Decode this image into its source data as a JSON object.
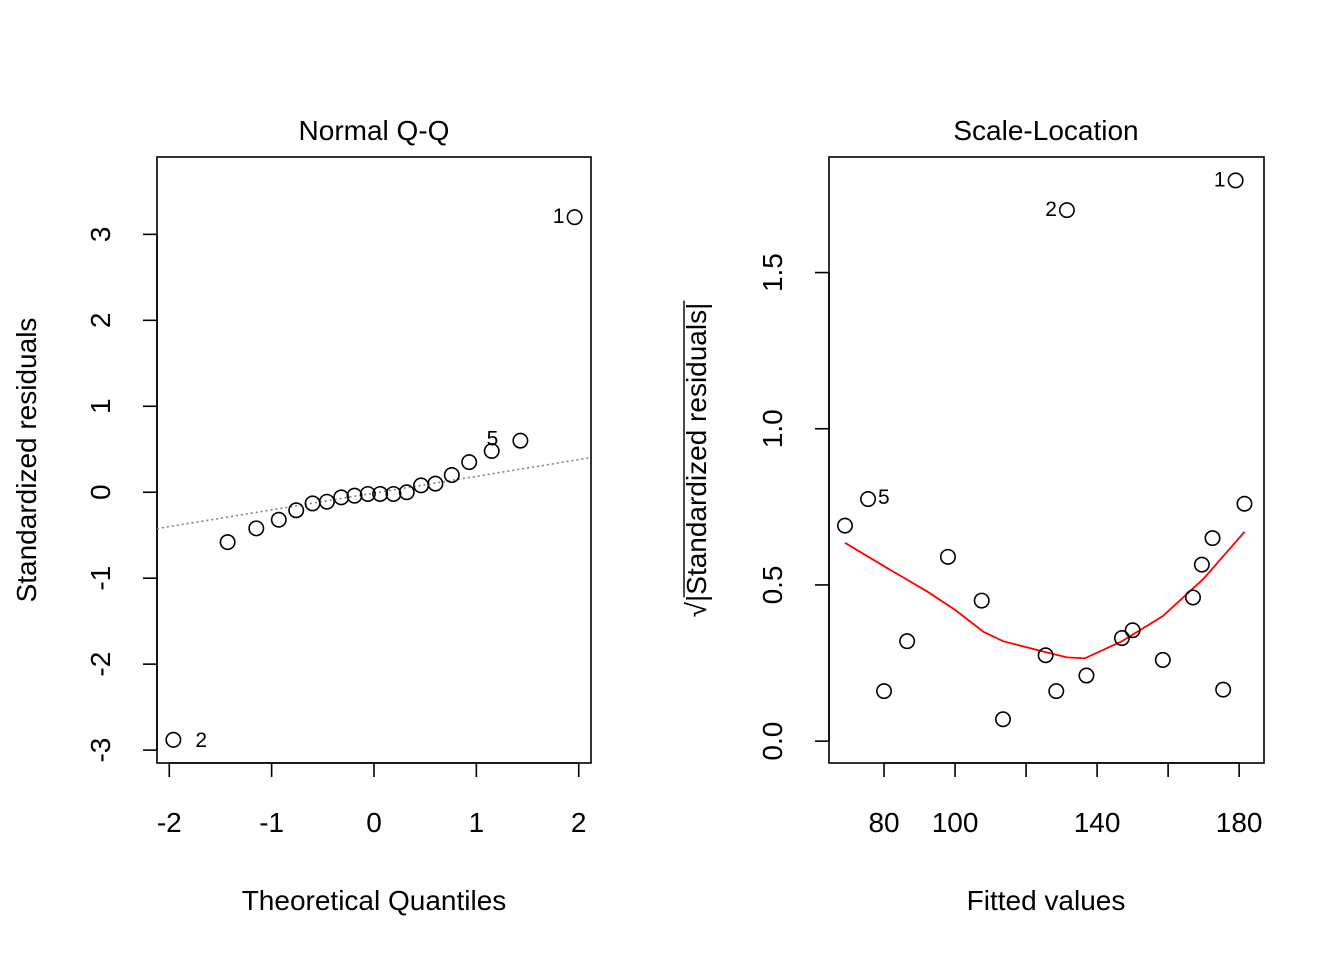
{
  "chart_data": [
    {
      "type": "scatter",
      "title": "Normal Q-Q",
      "xlabel": "Theoretical Quantiles",
      "ylabel": "Standardized residuals",
      "xlim": [
        -2.12,
        2.12
      ],
      "ylim": [
        -3.15,
        3.9
      ],
      "xticks": [
        -2,
        -1,
        0,
        1,
        2
      ],
      "xtick_labels": [
        "-2",
        "-1",
        "0",
        "1",
        "2"
      ],
      "yticks": [
        -3,
        -2,
        -1,
        0,
        1,
        2,
        3
      ],
      "ytick_labels": [
        "-3",
        "-2",
        "-1",
        "0",
        "1",
        "2",
        "3"
      ],
      "grid": false,
      "points": [
        {
          "x": -1.96,
          "y": -2.88,
          "label": "2"
        },
        {
          "x": -1.43,
          "y": -0.58,
          "label": ""
        },
        {
          "x": -1.15,
          "y": -0.42,
          "label": ""
        },
        {
          "x": -0.93,
          "y": -0.32,
          "label": ""
        },
        {
          "x": -0.76,
          "y": -0.21,
          "label": ""
        },
        {
          "x": -0.6,
          "y": -0.13,
          "label": ""
        },
        {
          "x": -0.46,
          "y": -0.11,
          "label": ""
        },
        {
          "x": -0.32,
          "y": -0.06,
          "label": ""
        },
        {
          "x": -0.19,
          "y": -0.04,
          "label": ""
        },
        {
          "x": -0.06,
          "y": -0.02,
          "label": ""
        },
        {
          "x": 0.06,
          "y": -0.02,
          "label": ""
        },
        {
          "x": 0.19,
          "y": -0.02,
          "label": ""
        },
        {
          "x": 0.32,
          "y": 0.0,
          "label": ""
        },
        {
          "x": 0.46,
          "y": 0.08,
          "label": ""
        },
        {
          "x": 0.6,
          "y": 0.1,
          "label": ""
        },
        {
          "x": 0.76,
          "y": 0.2,
          "label": ""
        },
        {
          "x": 0.93,
          "y": 0.35,
          "label": ""
        },
        {
          "x": 1.15,
          "y": 0.48,
          "label": ""
        },
        {
          "x": 1.43,
          "y": 0.6,
          "label": "5"
        },
        {
          "x": 1.96,
          "y": 3.2,
          "label": "1"
        }
      ],
      "reference_line": {
        "intercept": -0.01,
        "slope": 0.195,
        "style": "dotted",
        "color": "#808080"
      }
    },
    {
      "type": "scatter",
      "title": "Scale-Location",
      "xlabel": "Fitted values",
      "ylabel": "√|Standardized residuals|",
      "xlim": [
        64.5,
        187
      ],
      "ylim": [
        -0.07,
        1.87
      ],
      "xticks": [
        80,
        100,
        120,
        140,
        160,
        180
      ],
      "xtick_labels": [
        "80",
        "100",
        "",
        "140",
        "",
        "180"
      ],
      "yticks": [
        0.0,
        0.5,
        1.0,
        1.5
      ],
      "ytick_labels": [
        "0.0",
        "0.5",
        "1.0",
        "1.5"
      ],
      "grid": false,
      "points": [
        {
          "x": 69.0,
          "y": 0.69,
          "label": ""
        },
        {
          "x": 75.5,
          "y": 0.775,
          "label": "5"
        },
        {
          "x": 80.0,
          "y": 0.16,
          "label": ""
        },
        {
          "x": 86.5,
          "y": 0.32,
          "label": ""
        },
        {
          "x": 98.0,
          "y": 0.59,
          "label": ""
        },
        {
          "x": 107.5,
          "y": 0.45,
          "label": ""
        },
        {
          "x": 113.5,
          "y": 0.07,
          "label": ""
        },
        {
          "x": 125.5,
          "y": 0.275,
          "label": ""
        },
        {
          "x": 128.5,
          "y": 0.16,
          "label": ""
        },
        {
          "x": 131.5,
          "y": 1.7,
          "label": "2"
        },
        {
          "x": 137.0,
          "y": 0.21,
          "label": ""
        },
        {
          "x": 147.0,
          "y": 0.33,
          "label": ""
        },
        {
          "x": 150.0,
          "y": 0.355,
          "label": ""
        },
        {
          "x": 158.5,
          "y": 0.26,
          "label": ""
        },
        {
          "x": 167.0,
          "y": 0.46,
          "label": ""
        },
        {
          "x": 169.5,
          "y": 0.565,
          "label": ""
        },
        {
          "x": 172.5,
          "y": 0.65,
          "label": ""
        },
        {
          "x": 175.5,
          "y": 0.165,
          "label": ""
        },
        {
          "x": 179.0,
          "y": 1.795,
          "label": "1"
        },
        {
          "x": 181.5,
          "y": 0.76,
          "label": ""
        }
      ],
      "smoother": {
        "color": "#ff0000",
        "x": [
          69.0,
          80.0,
          92.0,
          100.0,
          108.0,
          113.5,
          125.5,
          131.5,
          136.5,
          147.0,
          158.5,
          170.0,
          181.5
        ],
        "y": [
          0.635,
          0.56,
          0.48,
          0.42,
          0.35,
          0.32,
          0.285,
          0.268,
          0.265,
          0.32,
          0.4,
          0.52,
          0.67
        ]
      }
    }
  ]
}
